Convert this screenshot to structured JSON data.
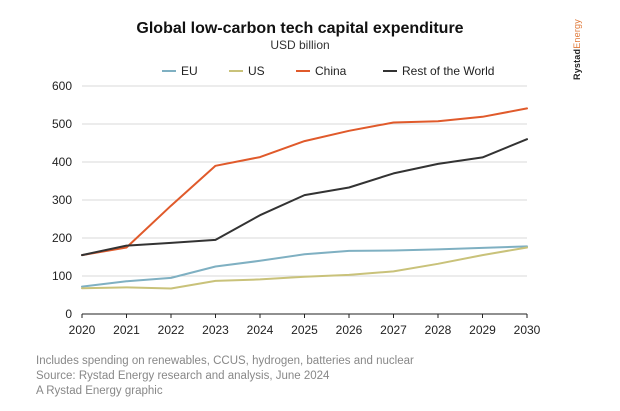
{
  "chart_data": {
    "type": "line",
    "title": "Global low-carbon tech capital expenditure",
    "subtitle": "USD billion",
    "xlabel": "",
    "ylabel": "",
    "ylim": [
      0,
      600
    ],
    "yticks": [
      0,
      100,
      200,
      300,
      400,
      500,
      600
    ],
    "x": [
      "2020",
      "2021",
      "2022",
      "2023",
      "2024",
      "2025",
      "2026",
      "2027",
      "2028",
      "2029",
      "2030"
    ],
    "legend_position": "top",
    "grid": true,
    "series": [
      {
        "name": "EU",
        "color": "#7fb0c2",
        "values": [
          72,
          86,
          95,
          125,
          140,
          157,
          166,
          167,
          170,
          174,
          178
        ]
      },
      {
        "name": "US",
        "color": "#c9c27a",
        "values": [
          68,
          70,
          67,
          87,
          91,
          98,
          103,
          112,
          132,
          155,
          175
        ]
      },
      {
        "name": "China",
        "color": "#e05a2b",
        "values": [
          155,
          175,
          285,
          390,
          413,
          455,
          482,
          504,
          507,
          519,
          541
        ]
      },
      {
        "name": "Rest of the World",
        "color": "#333333",
        "values": [
          155,
          180,
          187,
          195,
          260,
          313,
          333,
          370,
          395,
          412,
          460
        ]
      }
    ]
  },
  "brand": {
    "name_bold": "Rystad",
    "name_light": "Energy"
  },
  "footer": {
    "line1": "Includes spending on renewables, CCUS, hydrogen, batteries and nuclear",
    "line2": "Source: Rystad Energy research and analysis, June 2024",
    "line3": "A Rystad Energy graphic"
  }
}
